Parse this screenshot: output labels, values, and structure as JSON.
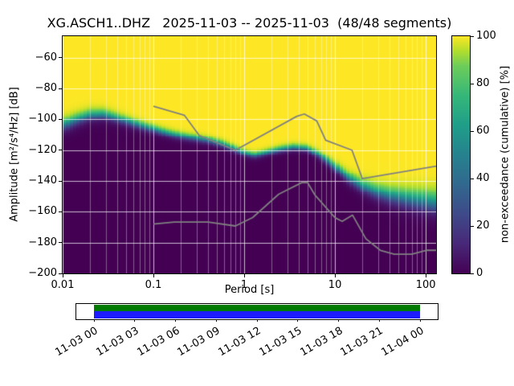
{
  "chart_data": {
    "type": "heatmap",
    "title": "XG.ASCH1..DHZ   2025-11-03 -- 2025-11-03  (48/48 segments)",
    "xlabel": "Period [s]",
    "ylabel": "Amplitude [m²/s⁴/Hz] [dB]",
    "xscale": "log",
    "xlim": [
      0.01,
      130
    ],
    "ylim": [
      -200,
      -46
    ],
    "grid": true,
    "xticks": [
      {
        "v": 0.01,
        "label": "0.01"
      },
      {
        "v": 0.1,
        "label": "0.1"
      },
      {
        "v": 1,
        "label": "1"
      },
      {
        "v": 10,
        "label": "10"
      },
      {
        "v": 100,
        "label": "100"
      }
    ],
    "yticks": [
      {
        "v": -60,
        "label": "−60"
      },
      {
        "v": -80,
        "label": "−80"
      },
      {
        "v": -100,
        "label": "−100"
      },
      {
        "v": -120,
        "label": "−120"
      },
      {
        "v": -140,
        "label": "−140"
      },
      {
        "v": -160,
        "label": "−160"
      },
      {
        "v": -180,
        "label": "−180"
      },
      {
        "v": -200,
        "label": "−200"
      }
    ],
    "colorbar": {
      "label": "non-exceedance (cumulative) [%]",
      "ticks": [
        0,
        20,
        40,
        60,
        80,
        100
      ],
      "lim": [
        0,
        100
      ],
      "colormap": "viridis"
    },
    "psd_distribution": {
      "description": "Cumulative PPSD: yellow (100%) above the distribution, dark purple (0%) below; median boundary curve and transition half-width approximate the observed distribution.",
      "period_bin_octaves": 0.125,
      "db_bin": 1,
      "median_curve": {
        "periods_s": [
          0.01,
          0.014,
          0.02,
          0.028,
          0.04,
          0.055,
          0.075,
          0.1,
          0.14,
          0.2,
          0.3,
          0.42,
          0.6,
          0.8,
          1.0,
          1.3,
          1.8,
          2.5,
          3.5,
          5,
          7,
          10,
          14,
          20,
          28,
          40,
          60,
          90,
          130
        ],
        "db": [
          -104,
          -100.5,
          -97.5,
          -97,
          -99.5,
          -102,
          -104.5,
          -106.5,
          -109,
          -111,
          -112.5,
          -114,
          -116.5,
          -119.5,
          -122,
          -123.5,
          -121.5,
          -119.5,
          -118.2,
          -119,
          -124,
          -131,
          -138,
          -143.5,
          -147,
          -149.5,
          -151.5,
          -153,
          -154.5
        ]
      },
      "transition_halfwidth": {
        "periods_s": [
          0.01,
          0.03,
          0.1,
          1,
          5,
          10,
          20,
          50,
          130
        ],
        "db": [
          5,
          4,
          3,
          2.5,
          2.5,
          3.5,
          5,
          7,
          9
        ]
      }
    },
    "noise_models": {
      "color": "#808080",
      "nhnm": {
        "periods_s": [
          0.1,
          0.22,
          0.32,
          0.8,
          3.8,
          4.6,
          6.3,
          7.9,
          15.4,
          20,
          354.8
        ],
        "db": [
          -91.5,
          -97.4,
          -110.5,
          -120,
          -98,
          -96.5,
          -101,
          -113.5,
          -120,
          -138.5,
          -126
        ]
      },
      "nlnm": {
        "periods_s": [
          0.1,
          0.17,
          0.4,
          0.8,
          1.24,
          2.4,
          4.3,
          5,
          6,
          10,
          12,
          15.6,
          21.9,
          31.6,
          45,
          70,
          101,
          154
        ],
        "db": [
          -168,
          -166.7,
          -166.7,
          -169.2,
          -163.7,
          -148.6,
          -141.1,
          -141.1,
          -149,
          -163.8,
          -166.2,
          -162.1,
          -177.5,
          -185,
          -187.5,
          -187.5,
          -185,
          -185
        ]
      }
    },
    "timeline": {
      "labels": [
        "11-03 00",
        "11-03 03",
        "11-03 06",
        "11-03 09",
        "11-03 12",
        "11-03 15",
        "11-03 18",
        "11-03 21",
        "11-04 00"
      ],
      "bar_colors": {
        "green": "#007a00",
        "blue": "#1c1cff"
      }
    }
  }
}
